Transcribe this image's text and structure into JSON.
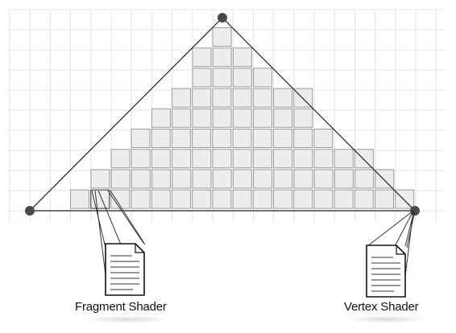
{
  "labels": {
    "fragment_shader": "Fragment Shader",
    "vertex_shader": "Vertex Shader"
  },
  "colors": {
    "background_grid": "#e4e4e4",
    "fragment_fill": "#ededed",
    "fragment_stroke": "#9a9a9a",
    "triangle_stroke": "#222222",
    "vertex_fill": "#4a4a4a",
    "document_fill": "#ffffff",
    "document_stroke": "#111111"
  },
  "shapes": {
    "vertices": 3,
    "fragment_rows_from_top": [
      1,
      3,
      4,
      7,
      8,
      10,
      13,
      15,
      17
    ]
  }
}
